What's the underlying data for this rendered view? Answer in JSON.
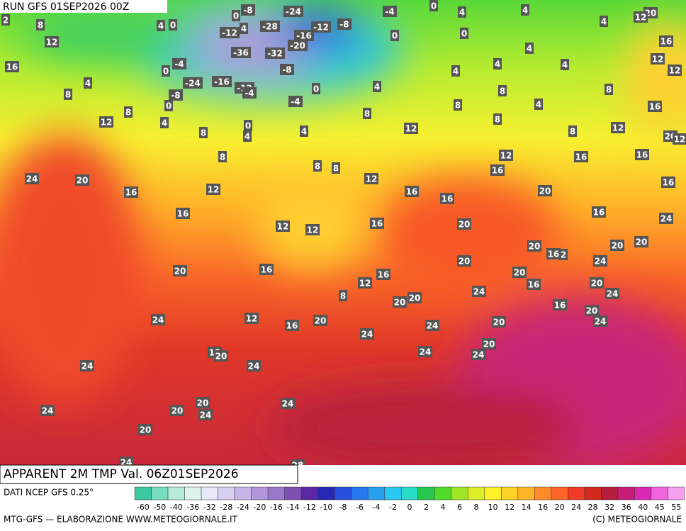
{
  "header": {
    "run": "RUN GFS 01SEP2026 00Z"
  },
  "map": {
    "labels": [
      2,
      8,
      4,
      0,
      0,
      -8,
      -24,
      -4,
      0,
      4,
      4,
      4,
      20,
      12,
      12,
      -12,
      4,
      -28,
      -12,
      -8,
      -16,
      -20,
      0,
      0,
      16,
      16,
      4,
      0,
      -4,
      -36,
      -32,
      -8,
      4,
      12,
      12,
      8,
      -24,
      -16,
      -12,
      -4,
      0,
      4,
      4,
      4,
      4,
      -8,
      0,
      -4,
      8,
      8,
      12,
      8,
      4,
      0,
      8,
      8,
      4,
      16,
      4,
      4,
      12,
      8,
      8,
      12,
      20,
      8,
      8,
      8,
      8,
      12,
      16,
      16,
      12,
      24,
      20,
      12,
      16,
      16,
      12,
      16,
      16,
      20,
      16,
      16,
      16,
      16,
      24,
      12,
      12,
      20,
      20,
      16,
      2,
      20,
      20,
      20,
      16,
      20,
      20,
      24,
      16,
      12,
      16,
      20,
      24,
      8,
      24,
      20,
      20,
      16,
      20,
      24,
      24,
      12,
      16,
      20,
      20,
      24,
      24,
      20,
      12,
      20,
      24,
      24,
      24,
      24,
      20,
      20,
      24,
      24,
      24,
      20,
      24,
      28
    ]
  },
  "footer": {
    "field": "APPARENT 2M TMP Val. 06Z01SEP2026",
    "source": "DATI NCEP GFS 0.25°",
    "credit": "MTG-GFS — ELABORAZIONE WWW.METEOGIORNALE.IT",
    "copyright": "(C) METEOGIORNALE"
  },
  "scale": {
    "ticks": [
      -60,
      -50,
      -40,
      -36,
      -32,
      -28,
      -24,
      -20,
      -16,
      -14,
      -12,
      -10,
      -8,
      -6,
      -4,
      -2,
      0,
      2,
      4,
      6,
      8,
      10,
      12,
      14,
      16,
      20,
      24,
      28,
      32,
      36,
      40,
      45,
      55
    ]
  }
}
